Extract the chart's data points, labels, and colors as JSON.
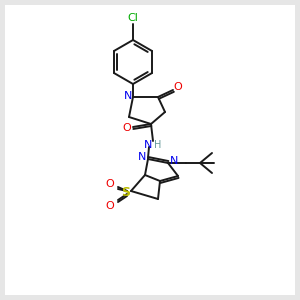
{
  "background_color": "#e6e6e6",
  "line_color": "#1a1a1a",
  "atom_colors": {
    "N": "#0000ee",
    "O": "#ee0000",
    "S": "#bbbb00",
    "Cl": "#00aa00",
    "H": "#669999",
    "C": "#1a1a1a"
  },
  "figsize": [
    3.0,
    3.0
  ],
  "dpi": 100
}
